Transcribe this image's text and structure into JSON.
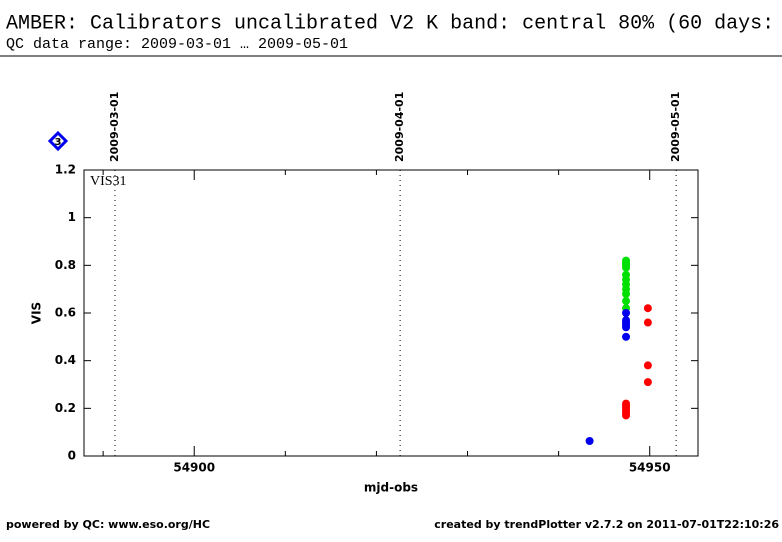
{
  "chart_data": {
    "type": "scatter",
    "title": "AMBER: Calibrators uncalibrated V2 K band: central 80% (60 days:",
    "subtitle": "QC data range: 2009-03-01 … 2009-05-01",
    "panel_label": "VIS31",
    "panel_number": "3",
    "x_label": "mjd-obs",
    "y_label": "VIS",
    "footer_left": "powered by QC: www.eso.org/HC",
    "footer_right": "created by trendPlotter v2.7.2 on 2011-07-01T22:10:26",
    "xlim": [
      54887.9,
      54955.3
    ],
    "ylim": [
      0,
      1.2
    ],
    "xticks": [
      54900,
      54950
    ],
    "xminor_ticks": [
      54890,
      54910,
      54920,
      54930,
      54940
    ],
    "yticks": [
      0,
      0.2,
      0.4,
      0.6,
      0.8,
      1,
      1.2
    ],
    "date_markers": [
      {
        "value": 54891.3,
        "label": "2009-03-01"
      },
      {
        "value": 54922.6,
        "label": "2009-04-01"
      },
      {
        "value": 54952.9,
        "label": "2009-05-01"
      }
    ],
    "series": [
      {
        "color": "#00e000",
        "x": [
          54947.4,
          54947.4,
          54947.4,
          54947.4,
          54947.4,
          54947.4,
          54947.4,
          54947.4,
          54947.4,
          54947.4,
          54947.4
        ],
        "values": [
          0.82,
          0.81,
          0.8,
          0.79,
          0.76,
          0.74,
          0.72,
          0.7,
          0.68,
          0.65,
          0.62
        ]
      },
      {
        "color": "#0000ee",
        "x": [
          54943.4,
          54947.4,
          54947.4,
          54947.4,
          54947.4,
          54947.4,
          54947.4
        ],
        "values": [
          0.063,
          0.6,
          0.57,
          0.56,
          0.55,
          0.54,
          0.5
        ]
      },
      {
        "color": "#ff0000",
        "x": [
          54947.4,
          54947.4,
          54947.4,
          54947.4,
          54947.4,
          54947.4,
          54949.8,
          54949.8,
          54949.8,
          54949.8
        ],
        "values": [
          0.22,
          0.21,
          0.2,
          0.19,
          0.18,
          0.17,
          0.62,
          0.56,
          0.38,
          0.31
        ]
      }
    ]
  }
}
